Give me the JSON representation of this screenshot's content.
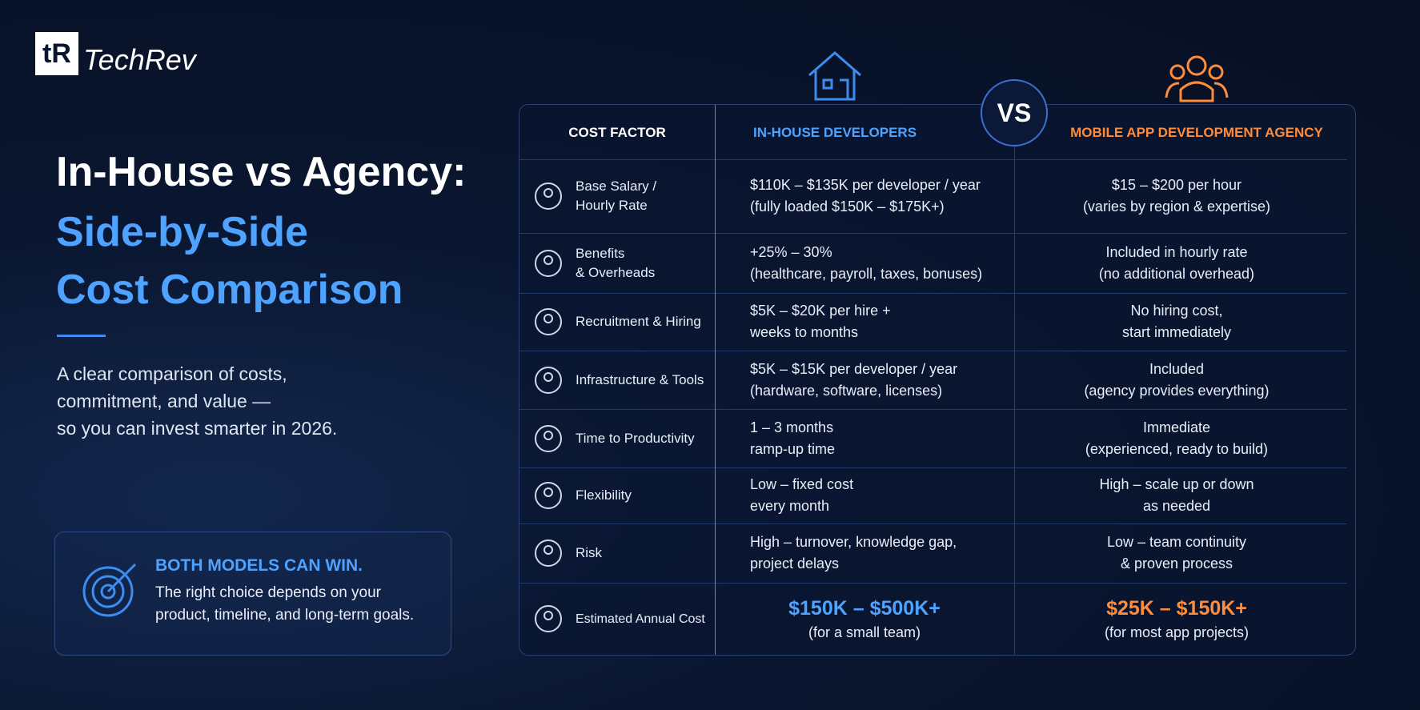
{
  "header": {
    "logo_mark": "tR",
    "brand": "TechRev"
  },
  "hero": {
    "title_line1": "In-House vs Agency:",
    "title_line2": "Side-by-Side",
    "title_line3": "Cost Comparison",
    "subtitle": [
      "A clear comparison of costs,",
      "commitment, and value —",
      "so you can invest smarter in 2026."
    ]
  },
  "callout": {
    "title": "BOTH MODELS CAN WIN.",
    "text": [
      "The right choice depends on your",
      "product, timeline, and long-term goals."
    ]
  },
  "table": {
    "header": {
      "factor": "COST FACTOR",
      "in_house": "IN-HOUSE DEVELOPERS",
      "vs": "VS",
      "agency": "MOBILE APP DEVELOPMENT AGENCY"
    },
    "rows": [
      {
        "factor": [
          "Base Salary /",
          "Hourly Rate"
        ],
        "in_house": [
          "$110K – $135K per developer / year",
          "(fully loaded $150K – $175K+)"
        ],
        "agency": [
          "$15 – $200 per hour",
          "(varies by region & expertise)"
        ]
      },
      {
        "factor": [
          "Benefits",
          "& Overheads"
        ],
        "in_house": [
          "+25% – 30%",
          "(healthcare, payroll, taxes, bonuses)"
        ],
        "agency": [
          "Included in hourly rate",
          "(no additional overhead)"
        ]
      },
      {
        "factor": [
          "Recruitment & Hiring"
        ],
        "in_house": [
          "$5K – $20K per hire +",
          "weeks to months"
        ],
        "agency": [
          "No hiring cost,",
          "start immediately"
        ]
      },
      {
        "factor": [
          "Infrastructure & Tools"
        ],
        "in_house": [
          "$5K – $15K per developer / year",
          "(hardware, software, licenses)"
        ],
        "agency": [
          "Included",
          "(agency provides everything)"
        ]
      },
      {
        "factor": [
          "Time to Productivity"
        ],
        "in_house": [
          "1 – 3 months",
          "ramp-up time"
        ],
        "agency": [
          "Immediate",
          "(experienced, ready to build)"
        ]
      },
      {
        "factor": [
          "Flexibility"
        ],
        "in_house": [
          "Low – fixed cost",
          "every month"
        ],
        "agency": [
          "High – scale up or down",
          "as needed"
        ]
      },
      {
        "factor": [
          "Risk"
        ],
        "in_house": [
          "High – turnover, knowledge gap,",
          "project delays"
        ],
        "agency": [
          "Low – team continuity",
          "& proven process"
        ]
      }
    ],
    "summary": {
      "factor": "Estimated Annual Cost",
      "in_house": {
        "value": "$150K – $500K+",
        "note": "(for a small team)"
      },
      "agency": {
        "value": "$25K – $150K+",
        "note": "(for most app projects)"
      }
    }
  }
}
